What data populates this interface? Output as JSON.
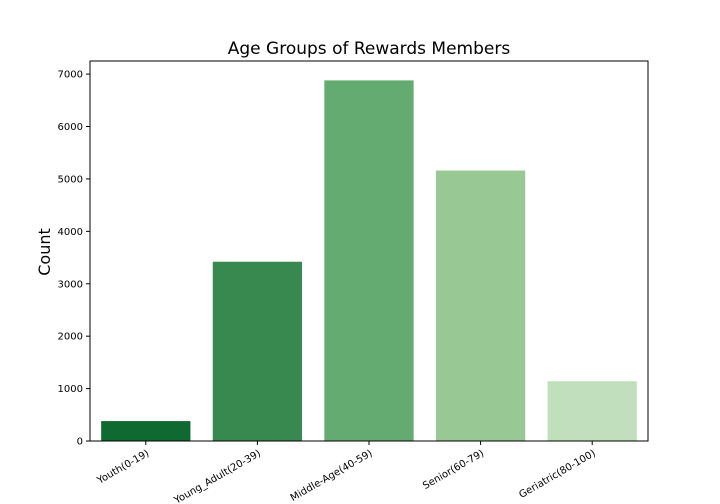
{
  "chart_data": {
    "type": "bar",
    "title": "Age Groups of Rewards Members",
    "xlabel": "",
    "ylabel": "Count",
    "categories": [
      "Youth(0-19)",
      "Young_Adult(20-39)",
      "Middle-Age(40-59)",
      "Senior(60-79)",
      "Geriatric(80-100)"
    ],
    "values": [
      380,
      3420,
      6880,
      5160,
      1140
    ],
    "colors": [
      "#0e6a30",
      "#38894f",
      "#63ab70",
      "#98c893",
      "#c1dfbc"
    ],
    "ylim": [
      0,
      7250
    ],
    "yticks": [
      0,
      1000,
      2000,
      3000,
      4000,
      5000,
      6000,
      7000
    ],
    "grid": false,
    "legend": "none"
  }
}
